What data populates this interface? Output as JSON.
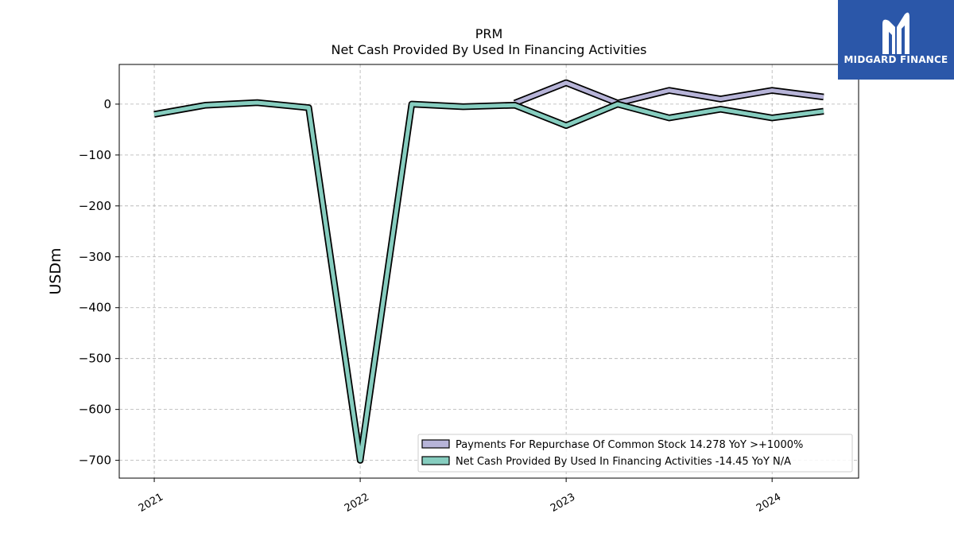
{
  "chart_data": {
    "type": "line",
    "title": "PRM",
    "subtitle": "Net Cash Provided By Used In Financing Activities",
    "xlabel": "",
    "ylabel": "USDm",
    "ylim": [
      -735,
      78
    ],
    "xlim": [
      2020.83,
      2024.42
    ],
    "yticks": [
      0,
      -100,
      -200,
      -300,
      -400,
      -500,
      -600,
      -700
    ],
    "ytick_labels": [
      "0",
      "−100",
      "−200",
      "−300",
      "−400",
      "−500",
      "−600",
      "−700"
    ],
    "xticks": [
      2021,
      2022,
      2023,
      2024
    ],
    "xtick_labels": [
      "2021",
      "2022",
      "2023",
      "2024"
    ],
    "grid": true,
    "legend_position": "bottom-right",
    "series": [
      {
        "name": "Payments For Repurchase Of Common Stock",
        "legend_label": "Payments For Repurchase Of Common Stock  14.278 YoY >+1000%",
        "color": "#b7b4d8",
        "x": [
          2022.75,
          2023.0,
          2023.25,
          2023.5,
          2023.75,
          2024.0,
          2024.25
        ],
        "values": [
          2,
          42,
          2,
          27,
          10,
          27,
          14
        ]
      },
      {
        "name": "Net Cash Provided By Used In Financing Activities",
        "legend_label": "Net Cash Provided By Used In Financing Activities  -14.45 YoY N/A",
        "color": "#86cdbf",
        "x": [
          2021.0,
          2021.25,
          2021.5,
          2021.75,
          2022.0,
          2022.25,
          2022.5,
          2022.75,
          2023.0,
          2023.25,
          2023.5,
          2023.75,
          2024.0,
          2024.25
        ],
        "values": [
          -20,
          -2,
          3,
          -7,
          -700,
          0,
          -5,
          -2,
          -42,
          0,
          -27,
          -10,
          -27,
          -14
        ]
      }
    ]
  },
  "brand": {
    "name": "MIDGARD FINANCE",
    "icon": "midgard-logo-icon",
    "color": "#2b57a9"
  }
}
